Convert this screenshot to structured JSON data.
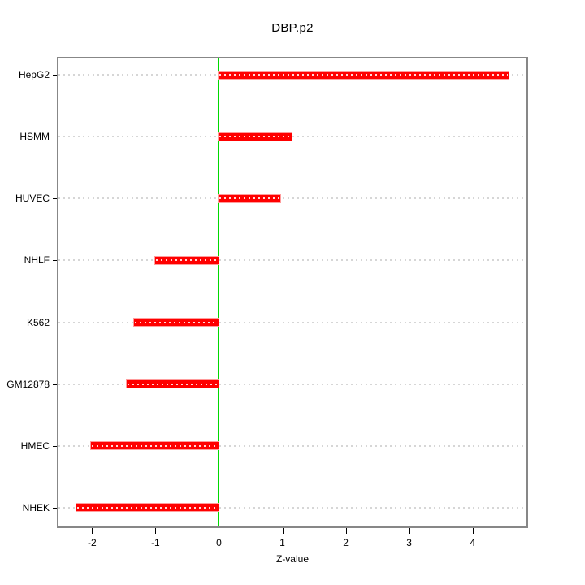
{
  "chart_data": {
    "type": "bar",
    "orientation": "horizontal",
    "title": "DBP.p2",
    "xlabel": "Z-value",
    "ylabel": "",
    "categories": [
      "HepG2",
      "HSMM",
      "HUVEC",
      "NHLF",
      "K562",
      "GM12878",
      "HMEC",
      "NHEK"
    ],
    "values": [
      4.57,
      1.15,
      0.97,
      -1.01,
      -1.34,
      -1.45,
      -2.02,
      -2.25
    ],
    "xlim": [
      -2.53,
      4.85
    ],
    "xticks": [
      -2,
      -1,
      0,
      1,
      2,
      3,
      4
    ],
    "xtick_labels": [
      "-2",
      "-1",
      "0",
      "1",
      "2",
      "3",
      "4"
    ],
    "grid": "horizontal-dotted",
    "legend_position": "none",
    "colors": {
      "bar": "#ff0000",
      "bar_edge": "#ff9c9c",
      "zero_line": "#00d900",
      "grid": "#d6d6d6",
      "frame": "#878787",
      "text": "#000000",
      "background": "#ffffff"
    }
  }
}
